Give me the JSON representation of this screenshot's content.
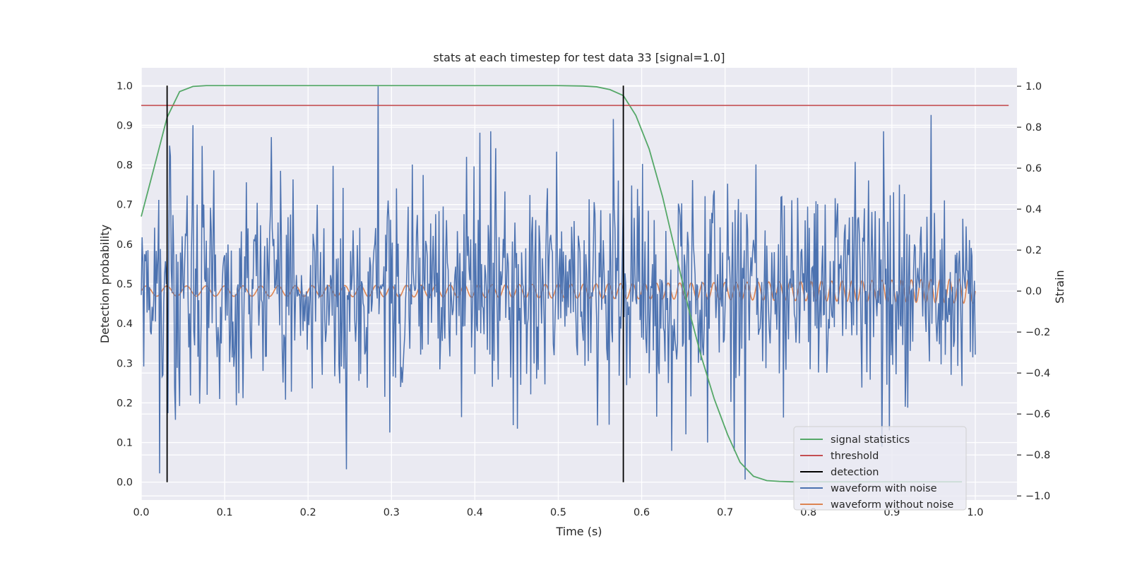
{
  "chart_data": {
    "type": "line",
    "title": "stats at each timestep for test data 33 [signal=1.0]",
    "xlabel": "Time (s)",
    "ylabel": "Detection probability",
    "ylabel_right": "Strain",
    "xlim": [
      0.0,
      1.05
    ],
    "ylim": [
      -0.045,
      1.045
    ],
    "ylim_right": [
      -1.02,
      1.09
    ],
    "x_ticks": [
      0.0,
      0.1,
      0.2,
      0.3,
      0.4,
      0.5,
      0.6,
      0.7,
      0.8,
      0.9,
      1.0
    ],
    "x_tick_labels": [
      "0.0",
      "0.1",
      "0.2",
      "0.3",
      "0.4",
      "0.5",
      "0.6",
      "0.7",
      "0.8",
      "0.9",
      "1.0"
    ],
    "y_ticks": [
      0.0,
      0.1,
      0.2,
      0.3,
      0.4,
      0.5,
      0.6,
      0.7,
      0.8,
      0.9,
      1.0
    ],
    "y_tick_labels": [
      "0.0",
      "0.1",
      "0.2",
      "0.3",
      "0.4",
      "0.5",
      "0.6",
      "0.7",
      "0.8",
      "0.9",
      "1.0"
    ],
    "y_right_ticks": [
      -1.0,
      -0.8,
      -0.6,
      -0.4,
      -0.2,
      0.0,
      0.2,
      0.4,
      0.6,
      0.8,
      1.0
    ],
    "y_right_tick_labels": [
      "−1.0",
      "−0.8",
      "−0.6",
      "−0.4",
      "−0.2",
      "0.0",
      "0.2",
      "0.4",
      "0.6",
      "0.8",
      "1.0"
    ],
    "grid": true,
    "legend_position": "bottom-right",
    "colors": {
      "background": "#eaeaf2",
      "grid": "#ffffff",
      "signal": "#55a868",
      "threshold": "#c44e52",
      "detection": "#000000",
      "noisy": "#4c72b0",
      "clean": "#dd8452"
    },
    "series": [
      {
        "name": "signal statistics",
        "axis": "left",
        "x": [
          0.0,
          0.015,
          0.031,
          0.046,
          0.062,
          0.078,
          0.1,
          0.15,
          0.2,
          0.3,
          0.4,
          0.5,
          0.53,
          0.546,
          0.562,
          0.578,
          0.593,
          0.609,
          0.625,
          0.64,
          0.656,
          0.671,
          0.687,
          0.703,
          0.718,
          0.734,
          0.75,
          0.765,
          0.78,
          0.8,
          0.85,
          0.9,
          0.95,
          0.984
        ],
        "y": [
          0.67,
          0.79,
          0.92,
          0.985,
          0.998,
          1.0,
          1.0,
          1.0,
          1.0,
          1.0,
          1.0,
          1.0,
          0.999,
          0.997,
          0.99,
          0.975,
          0.925,
          0.84,
          0.72,
          0.585,
          0.44,
          0.32,
          0.21,
          0.12,
          0.05,
          0.015,
          0.004,
          0.002,
          0.001,
          0.001,
          0.001,
          0.001,
          0.001,
          0.001
        ]
      },
      {
        "name": "threshold",
        "axis": "left",
        "x": [
          0.0,
          1.04
        ],
        "y": [
          0.95,
          0.95
        ]
      },
      {
        "name": "detection",
        "axis": "left",
        "x": [
          0.031,
          0.578
        ],
        "y": [
          1.0,
          1.0
        ]
      },
      {
        "name": "waveform with noise",
        "axis": "right",
        "x_range": [
          0.0,
          1.0
        ],
        "n_points": 1000,
        "style": "noise",
        "amplitude_std": 0.27,
        "peaks": [
          {
            "x": 0.284,
            "y": 1.0
          },
          {
            "x": 0.947,
            "y": 0.86
          },
          {
            "x": 0.724,
            "y": -0.92
          },
          {
            "x": 0.022,
            "y": -0.89
          },
          {
            "x": 0.246,
            "y": -0.87
          },
          {
            "x": 0.888,
            "y": -0.76
          },
          {
            "x": 0.062,
            "y": 0.81
          },
          {
            "x": 0.566,
            "y": 0.84
          },
          {
            "x": 0.034,
            "y": 0.71
          }
        ]
      },
      {
        "name": "waveform without noise",
        "axis": "right",
        "x_range": [
          0.0,
          1.0
        ],
        "n_points": 2000,
        "style": "chirp",
        "amplitude_start": 0.025,
        "amplitude_end": 0.06,
        "frequency_start": 40,
        "frequency_end": 90
      }
    ]
  }
}
